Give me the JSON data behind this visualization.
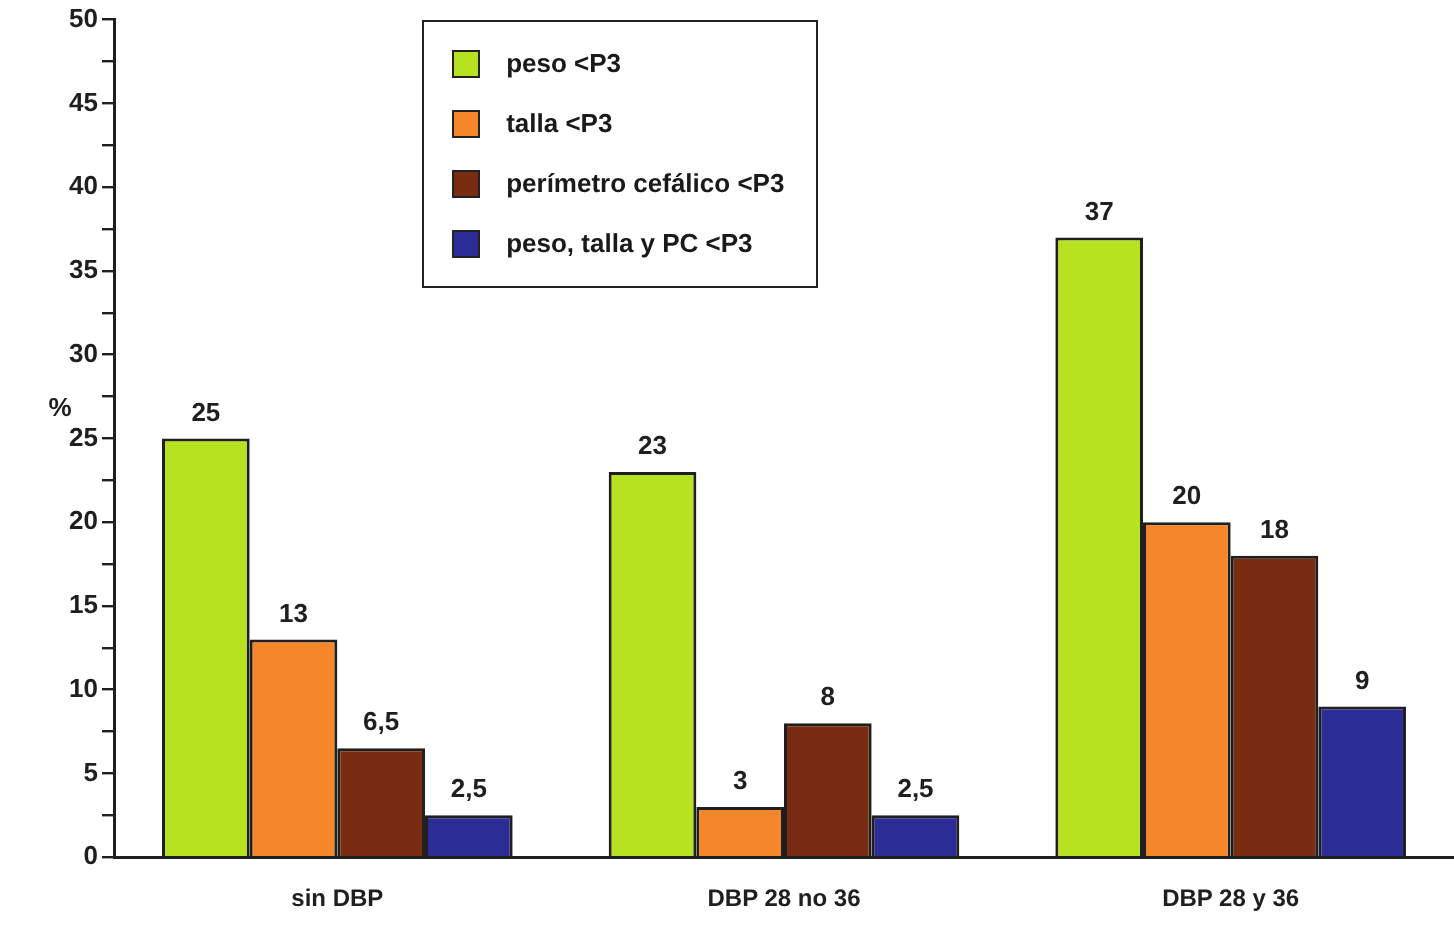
{
  "chart_data": {
    "type": "bar",
    "ylabel": "%",
    "categories": [
      "sin DBP",
      "DBP 28 no 36",
      "DBP 28 y 36"
    ],
    "series": [
      {
        "name": "peso <P3",
        "color": "#b6e21f",
        "values": [
          25,
          23,
          37
        ],
        "value_labels": [
          "25",
          "23",
          "37"
        ]
      },
      {
        "name": "talla <P3",
        "color": "#f5862a",
        "values": [
          13,
          3,
          20
        ],
        "value_labels": [
          "13",
          "3",
          "20"
        ]
      },
      {
        "name": "perímetro cefálico <P3",
        "color": "#7a2c12",
        "values": [
          6.5,
          8,
          18
        ],
        "value_labels": [
          "6,5",
          "8",
          "18"
        ]
      },
      {
        "name": "peso, talla y PC <P3",
        "color": "#2b2c96",
        "values": [
          2.5,
          2.5,
          9
        ],
        "value_labels": [
          "2,5",
          "2,5",
          "9"
        ]
      }
    ],
    "ylim": [
      0,
      50
    ],
    "yticks": [
      0,
      {
        "value": 2.5,
        "label": null
      },
      5,
      {
        "value": 7.5,
        "label": null
      },
      10,
      {
        "value": 12.5,
        "label": null
      },
      15,
      {
        "value": 17.5,
        "label": null
      },
      20,
      {
        "value": 22.5,
        "label": null
      },
      25,
      {
        "value": 27.5,
        "label": null
      },
      30,
      {
        "value": 32.5,
        "label": null
      },
      35,
      {
        "value": 37.5,
        "label": null
      },
      40,
      {
        "value": 42.5,
        "label": null
      },
      45,
      {
        "value": 47.5,
        "label": null
      },
      50
    ],
    "grid": false,
    "legend": "top"
  }
}
